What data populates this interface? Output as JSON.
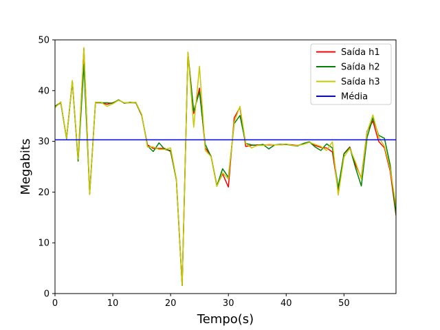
{
  "chart_data": {
    "type": "line",
    "xlabel": "Tempo(s)",
    "ylabel": "Megabits",
    "xlim": [
      0,
      59
    ],
    "ylim": [
      0,
      50
    ],
    "xticks": [
      0,
      10,
      20,
      30,
      40,
      50
    ],
    "yticks": [
      0,
      10,
      20,
      30,
      40,
      50
    ],
    "grid": false,
    "legend_position": "top-right",
    "x": [
      0,
      1,
      2,
      3,
      4,
      5,
      6,
      7,
      8,
      9,
      10,
      11,
      12,
      13,
      14,
      15,
      16,
      17,
      18,
      19,
      20,
      21,
      22,
      23,
      24,
      25,
      26,
      27,
      28,
      29,
      30,
      31,
      32,
      33,
      34,
      35,
      36,
      37,
      38,
      39,
      40,
      41,
      42,
      43,
      44,
      45,
      46,
      47,
      48,
      49,
      50,
      51,
      52,
      53,
      54,
      55,
      56,
      57,
      58,
      59
    ],
    "series": [
      {
        "name": "Saída h1",
        "color": "#ff0000",
        "values": [
          36.8,
          37.6,
          30.6,
          41.8,
          26.3,
          48.3,
          19.6,
          37.6,
          37.6,
          37.3,
          37.6,
          38.1,
          37.6,
          37.6,
          37.6,
          35.1,
          29.3,
          28.6,
          28.6,
          28.6,
          28.0,
          22.5,
          1.6,
          47.5,
          35.5,
          40.5,
          28.7,
          27.1,
          21.3,
          23.6,
          21.0,
          34.6,
          36.7,
          29.0,
          29.2,
          29.3,
          29.3,
          29.3,
          29.3,
          29.3,
          29.4,
          29.3,
          29.2,
          29.5,
          29.9,
          29.2,
          28.8,
          28.7,
          27.9,
          20.3,
          27.6,
          28.9,
          25.4,
          22.8,
          32.0,
          34.0,
          30.0,
          28.7,
          24.1,
          15.4
        ]
      },
      {
        "name": "Saída h2",
        "color": "#008000",
        "values": [
          36.9,
          37.7,
          30.5,
          41.9,
          26.1,
          45.2,
          19.7,
          37.7,
          37.6,
          37.6,
          37.5,
          38.2,
          37.5,
          37.7,
          37.6,
          35.2,
          29.1,
          28.0,
          29.7,
          28.4,
          28.2,
          22.4,
          1.6,
          47.3,
          35.9,
          39.8,
          29.4,
          27.0,
          21.2,
          24.6,
          22.9,
          33.5,
          35.1,
          29.6,
          29.3,
          29.2,
          29.4,
          28.5,
          29.3,
          29.4,
          29.4,
          29.2,
          29.1,
          29.6,
          29.9,
          28.9,
          28.2,
          29.5,
          28.7,
          20.8,
          27.5,
          28.8,
          24.8,
          21.2,
          30.8,
          34.6,
          31.2,
          30.6,
          25.3,
          15.6
        ]
      },
      {
        "name": "Saída h3",
        "color": "#c8c800",
        "values": [
          36.6,
          37.8,
          30.6,
          42.0,
          26.5,
          48.5,
          19.5,
          37.7,
          37.7,
          36.9,
          37.4,
          38.1,
          37.6,
          37.6,
          37.7,
          35.3,
          28.9,
          28.9,
          28.4,
          28.4,
          28.7,
          22.6,
          1.6,
          47.6,
          32.8,
          44.8,
          28.2,
          27.0,
          21.1,
          23.8,
          22.6,
          33.8,
          36.9,
          29.6,
          28.7,
          29.2,
          29.2,
          29.4,
          29.3,
          29.3,
          29.5,
          29.2,
          29.2,
          29.4,
          29.8,
          29.4,
          29.0,
          28.2,
          29.9,
          19.4,
          26.9,
          28.6,
          25.9,
          22.6,
          31.8,
          35.2,
          30.9,
          29.0,
          24.6,
          17.2
        ]
      },
      {
        "name": "Média",
        "color": "#0000ff",
        "values": [
          30.3,
          30.3,
          30.3,
          30.3,
          30.3,
          30.3,
          30.3,
          30.3,
          30.3,
          30.3,
          30.3,
          30.3,
          30.3,
          30.3,
          30.3,
          30.3,
          30.3,
          30.3,
          30.3,
          30.3,
          30.3,
          30.3,
          30.3,
          30.3,
          30.3,
          30.3,
          30.3,
          30.3,
          30.3,
          30.3,
          30.3,
          30.3,
          30.3,
          30.3,
          30.3,
          30.3,
          30.3,
          30.3,
          30.3,
          30.3,
          30.3,
          30.3,
          30.3,
          30.3,
          30.3,
          30.3,
          30.3,
          30.3,
          30.3,
          30.3,
          30.3,
          30.3,
          30.3,
          30.3,
          30.3,
          30.3,
          30.3,
          30.3,
          30.3,
          30.3
        ]
      }
    ]
  }
}
